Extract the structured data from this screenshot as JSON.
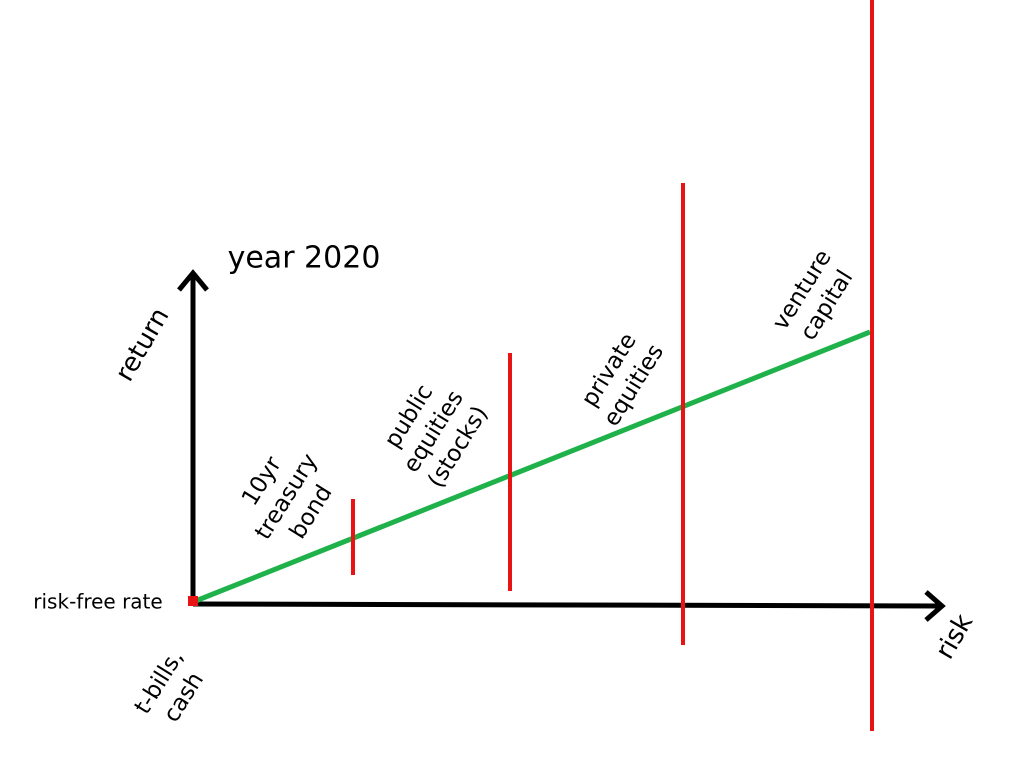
{
  "title": "year 2020",
  "axes": {
    "y_label": "return",
    "x_label": "risk",
    "origin_label": "risk-free rate"
  },
  "assets": [
    {
      "lines": [
        "t-bills,",
        "cash"
      ]
    },
    {
      "lines": [
        "10yr",
        "treasury",
        "bond"
      ]
    },
    {
      "lines": [
        "public",
        "equities",
        "(stocks)"
      ]
    },
    {
      "lines": [
        "private",
        "equities"
      ]
    },
    {
      "lines": [
        "venture",
        "capital"
      ]
    }
  ]
}
